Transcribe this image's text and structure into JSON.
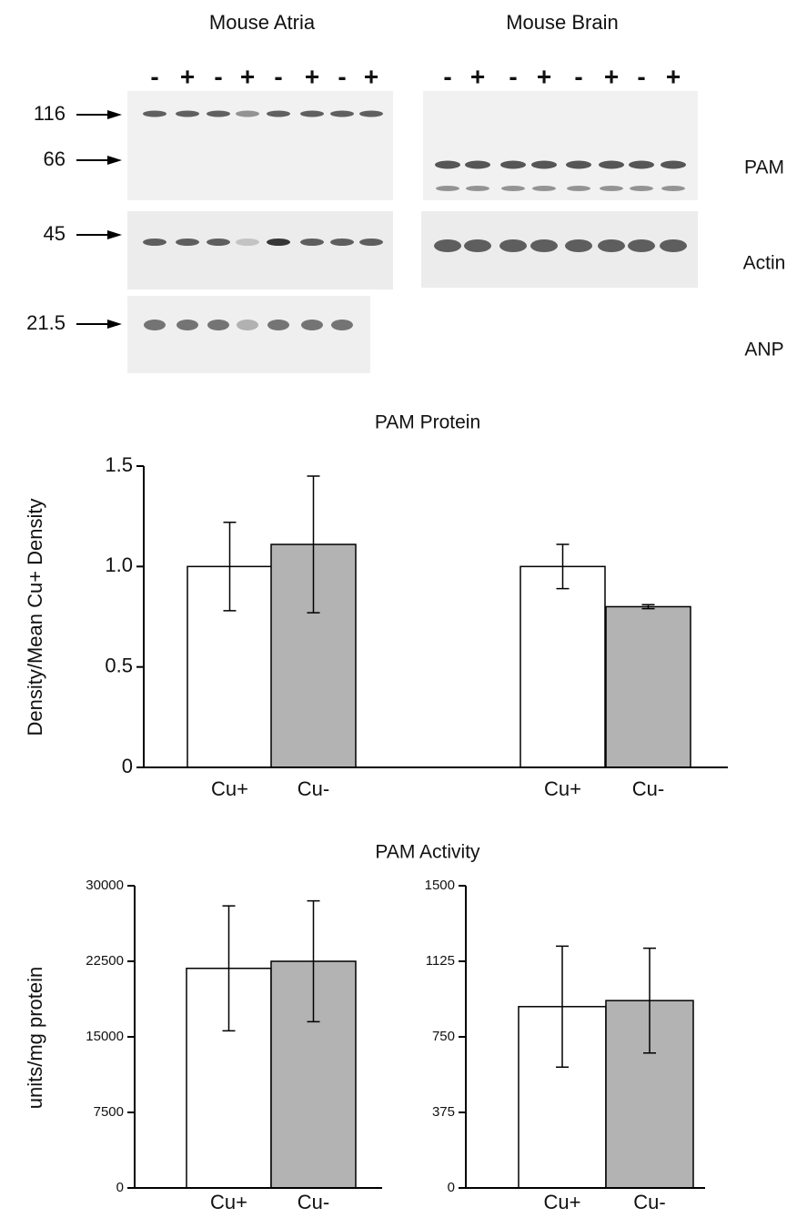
{
  "blots": {
    "atria_title": "Mouse Atria",
    "brain_title": "Mouse Brain",
    "atria_lanes": [
      "-",
      "+",
      "-",
      "+",
      "-",
      "+",
      "-",
      "+"
    ],
    "brain_lanes": [
      "-",
      "+",
      "-",
      "+",
      "-",
      "+",
      "-",
      "+"
    ],
    "markers": [
      "116",
      "66",
      "45",
      "21.5"
    ],
    "proteins": [
      "PAM",
      "Actin",
      "ANP"
    ]
  },
  "chart_data": [
    {
      "type": "bar",
      "title": "PAM Protein",
      "ylabel": "Density/Mean Cu+ Density",
      "categories": [
        "Cu+",
        "Cu-",
        "Cu+",
        "Cu-"
      ],
      "values": [
        1.0,
        1.11,
        1.0,
        0.8
      ],
      "errors": [
        0.22,
        0.34,
        0.11,
        0.01
      ],
      "colors": [
        "#ffffff",
        "#b3b3b3",
        "#ffffff",
        "#b3b3b3"
      ],
      "ylim": [
        0,
        1.5
      ],
      "yticks": [
        0,
        0.5,
        {
          "value": 1,
          "label": "1.0"
        },
        1.5
      ]
    },
    {
      "type": "bar",
      "title": "PAM Activity",
      "ylabel": "units/mg protein",
      "categories": [
        "Cu+",
        "Cu-"
      ],
      "values": [
        21800,
        22500
      ],
      "errors": [
        6200,
        6000
      ],
      "colors": [
        "#ffffff",
        "#b3b3b3"
      ],
      "ylim": [
        0,
        30000
      ],
      "yticks": [
        0,
        7500,
        15000,
        22500,
        30000
      ]
    },
    {
      "type": "bar",
      "categories": [
        "Cu+",
        "Cu-"
      ],
      "values": [
        900,
        930
      ],
      "errors": [
        300,
        260
      ],
      "colors": [
        "#ffffff",
        "#b3b3b3"
      ],
      "ylim": [
        0,
        1500
      ],
      "yticks": [
        0,
        375,
        750,
        1125,
        1500
      ]
    }
  ]
}
